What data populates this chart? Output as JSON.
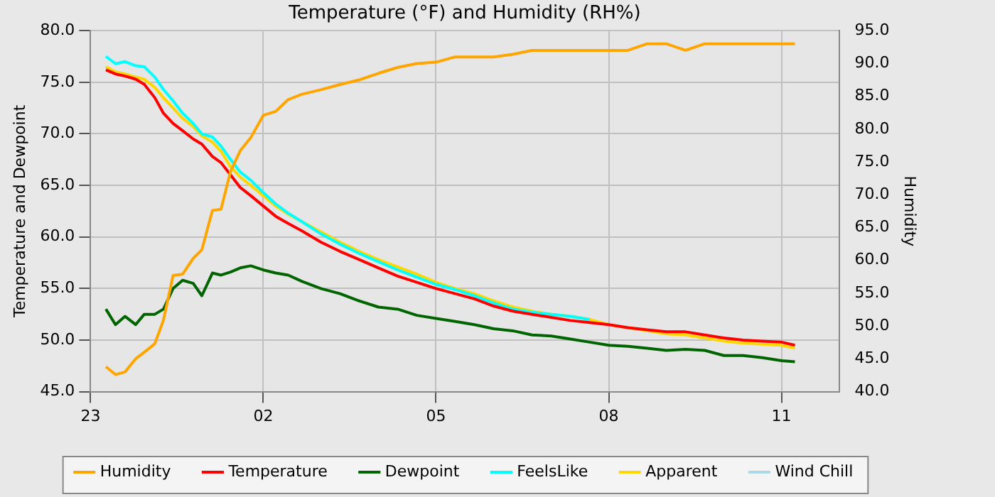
{
  "chart_data": {
    "type": "line",
    "title": "Temperature (°F) and Humidity (RH%)",
    "ylabel": "Temperature and Dewpoint",
    "y2label": "Humidity",
    "x": [
      "--01-01T23:16",
      "--01-01T23:26",
      "--01-01T23:36",
      "--01-01T23:47",
      "--01-01T23:56",
      "--01-02T00:07",
      "--01-02T00:16",
      "--01-02T00:26",
      "--01-02T00:36",
      "--01-02T00:47",
      "--01-02T00:56",
      "--01-02T01:07",
      "--01-02T01:16",
      "--01-02T01:26",
      "--01-02T01:36",
      "--01-02T01:47",
      "--01-02T02:00",
      "--01-02T02:13",
      "--01-02T02:26",
      "--01-02T02:40",
      "--01-02T03:00",
      "--01-02T03:20",
      "--01-02T03:40",
      "--01-02T04:00",
      "--01-02T04:20",
      "--01-02T04:40",
      "--01-02T05:00",
      "--01-02T05:20",
      "--01-02T05:40",
      "--01-02T06:00",
      "--01-02T06:20",
      "--01-02T06:40",
      "--01-02T07:00",
      "--01-02T07:20",
      "--01-02T07:40",
      "--01-02T08:00",
      "--01-02T08:20",
      "--01-02T08:40",
      "--01-02T09:00",
      "--01-02T09:20",
      "--01-02T09:40",
      "--01-02T10:00",
      "--01-02T10:20",
      "--01-02T10:40",
      "--01-02T11:00",
      "--01-02T11:14"
    ],
    "xlim": [
      "--01-01T23:00",
      "--01-02T12:00"
    ],
    "xticks": [
      {
        "value": "--01-01T23:00",
        "label": "23"
      },
      {
        "value": "--01-02T02:00",
        "label": "02"
      },
      {
        "value": "--01-02T05:00",
        "label": "05"
      },
      {
        "value": "--01-02T08:00",
        "label": "08"
      },
      {
        "value": "--01-02T11:00",
        "label": "11"
      }
    ],
    "ylim": [
      45,
      80
    ],
    "yticks": [
      {
        "value": 45,
        "label": "45.0"
      },
      {
        "value": 50,
        "label": "50.0"
      },
      {
        "value": 55,
        "label": "55.0"
      },
      {
        "value": 60,
        "label": "60.0"
      },
      {
        "value": 65,
        "label": "65.0"
      },
      {
        "value": 70,
        "label": "70.0"
      },
      {
        "value": 75,
        "label": "75.0"
      },
      {
        "value": 80,
        "label": "80.0"
      }
    ],
    "y2lim": [
      40,
      95
    ],
    "y2ticks": [
      {
        "value": 40,
        "label": "40.0"
      },
      {
        "value": 45,
        "label": "45.0"
      },
      {
        "value": 50,
        "label": "50.0"
      },
      {
        "value": 55,
        "label": "55.0"
      },
      {
        "value": 60,
        "label": "60.0"
      },
      {
        "value": 65,
        "label": "65.0"
      },
      {
        "value": 70,
        "label": "70.0"
      },
      {
        "value": 75,
        "label": "75.0"
      },
      {
        "value": 80,
        "label": "80.0"
      },
      {
        "value": 85,
        "label": "85.0"
      },
      {
        "value": 90,
        "label": "90.0"
      },
      {
        "value": 95,
        "label": "95.0"
      }
    ],
    "grid": true,
    "legend": "bottom",
    "marker": "none",
    "line_style": "solid",
    "series": [
      {
        "name": "Humidity",
        "color": "#ffa500",
        "axis": "y2",
        "values": [
          43.8,
          42.6,
          43.0,
          45.0,
          46.0,
          47.3,
          50.9,
          57.7,
          57.9,
          60.3,
          61.6,
          67.6,
          67.8,
          73.6,
          76.7,
          78.7,
          82.1,
          82.7,
          84.5,
          85.3,
          86.0,
          86.8,
          87.5,
          88.5,
          89.4,
          90.0,
          90.2,
          91.0,
          91.0,
          91.0,
          91.4,
          92.0,
          92.0,
          92.0,
          92.0,
          92.0,
          92.0,
          93.0,
          93.0,
          92.0,
          93.0,
          93.0,
          93.0,
          93.0,
          93.0,
          93.0
        ]
      },
      {
        "name": "Temperature",
        "color": "#ff0000",
        "values": [
          76.2,
          75.8,
          75.6,
          75.3,
          74.8,
          73.5,
          72.0,
          71.0,
          70.3,
          69.5,
          69.0,
          67.8,
          67.2,
          66.0,
          64.8,
          64.0,
          63.0,
          62.0,
          61.3,
          60.6,
          59.5,
          58.6,
          57.8,
          57.0,
          56.2,
          55.6,
          55.0,
          54.5,
          54.0,
          53.3,
          52.8,
          52.5,
          52.2,
          51.9,
          51.7,
          51.5,
          51.2,
          51.0,
          50.8,
          50.8,
          50.5,
          50.2,
          50.0,
          49.9,
          49.8,
          49.5
        ]
      },
      {
        "name": "Dewpoint",
        "color": "#006400",
        "values": [
          53.0,
          51.5,
          52.3,
          51.5,
          52.5,
          52.5,
          53.0,
          55.0,
          55.8,
          55.5,
          54.3,
          56.5,
          56.3,
          56.6,
          57.0,
          57.2,
          56.8,
          56.5,
          56.3,
          55.7,
          55.0,
          54.5,
          53.8,
          53.2,
          53.0,
          52.4,
          52.1,
          51.8,
          51.5,
          51.1,
          50.9,
          50.5,
          50.4,
          50.1,
          49.8,
          49.5,
          49.4,
          49.2,
          49.0,
          49.1,
          49.0,
          48.5,
          48.5,
          48.3,
          48.0,
          47.9
        ]
      },
      {
        "name": "FeelsLike",
        "color": "#00ffff",
        "values": [
          77.5,
          76.8,
          77.0,
          76.6,
          76.5,
          75.5,
          74.3,
          73.2,
          72.0,
          71.0,
          70.0,
          69.7,
          68.8,
          67.5,
          66.3,
          65.5,
          64.3,
          63.2,
          62.3,
          61.5,
          60.3,
          59.3,
          58.4,
          57.6,
          56.8,
          56.1,
          55.4,
          54.9,
          54.3,
          53.6,
          53.0,
          52.7,
          52.5,
          52.3,
          52.0,
          null,
          null,
          null,
          null,
          null,
          null,
          null,
          null,
          null,
          null,
          null
        ]
      },
      {
        "name": "Apparent",
        "color": "#ffd700",
        "values": [
          76.5,
          76.0,
          75.8,
          75.5,
          75.3,
          74.5,
          73.5,
          72.5,
          71.5,
          70.7,
          69.8,
          69.2,
          68.3,
          66.8,
          65.8,
          65.0,
          64.0,
          63.0,
          62.2,
          61.5,
          60.5,
          59.5,
          58.6,
          57.8,
          57.1,
          56.4,
          55.6,
          55.0,
          54.5,
          53.8,
          53.2,
          52.8,
          52.5,
          52.3,
          52.0,
          51.5,
          51.2,
          50.9,
          50.6,
          50.5,
          50.2,
          49.9,
          49.7,
          49.6,
          49.5,
          49.2
        ]
      },
      {
        "name": "Wind Chill",
        "color": "#add8e6",
        "values": [
          null,
          null,
          null,
          null,
          null,
          null,
          null,
          null,
          null,
          null,
          null,
          null,
          null,
          null,
          null,
          null,
          null,
          null,
          null,
          null,
          null,
          null,
          null,
          null,
          null,
          null,
          null,
          null,
          null,
          null,
          null,
          null,
          null,
          null,
          null,
          null,
          null,
          null,
          null,
          null,
          null,
          null,
          null,
          null,
          null,
          null
        ]
      }
    ]
  }
}
